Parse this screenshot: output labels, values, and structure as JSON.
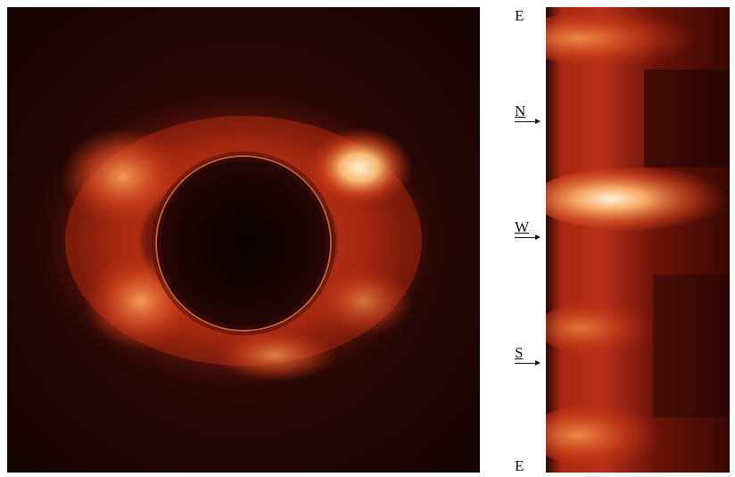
{
  "left_image": {
    "description_icon": "solar-corona-ring-icon"
  },
  "right_strip": {
    "description_icon": "unwrapped-limb-strip-icon"
  },
  "labels": {
    "top_e": "E",
    "n": "N",
    "w": "W",
    "s": "S",
    "bottom_e": "E"
  },
  "colors": {
    "background": "#ffffff",
    "dark": "#1a0504",
    "deep_red": "#5a0f08",
    "red": "#a8220f",
    "orange": "#e0552a",
    "bright": "#ffe6c0"
  }
}
